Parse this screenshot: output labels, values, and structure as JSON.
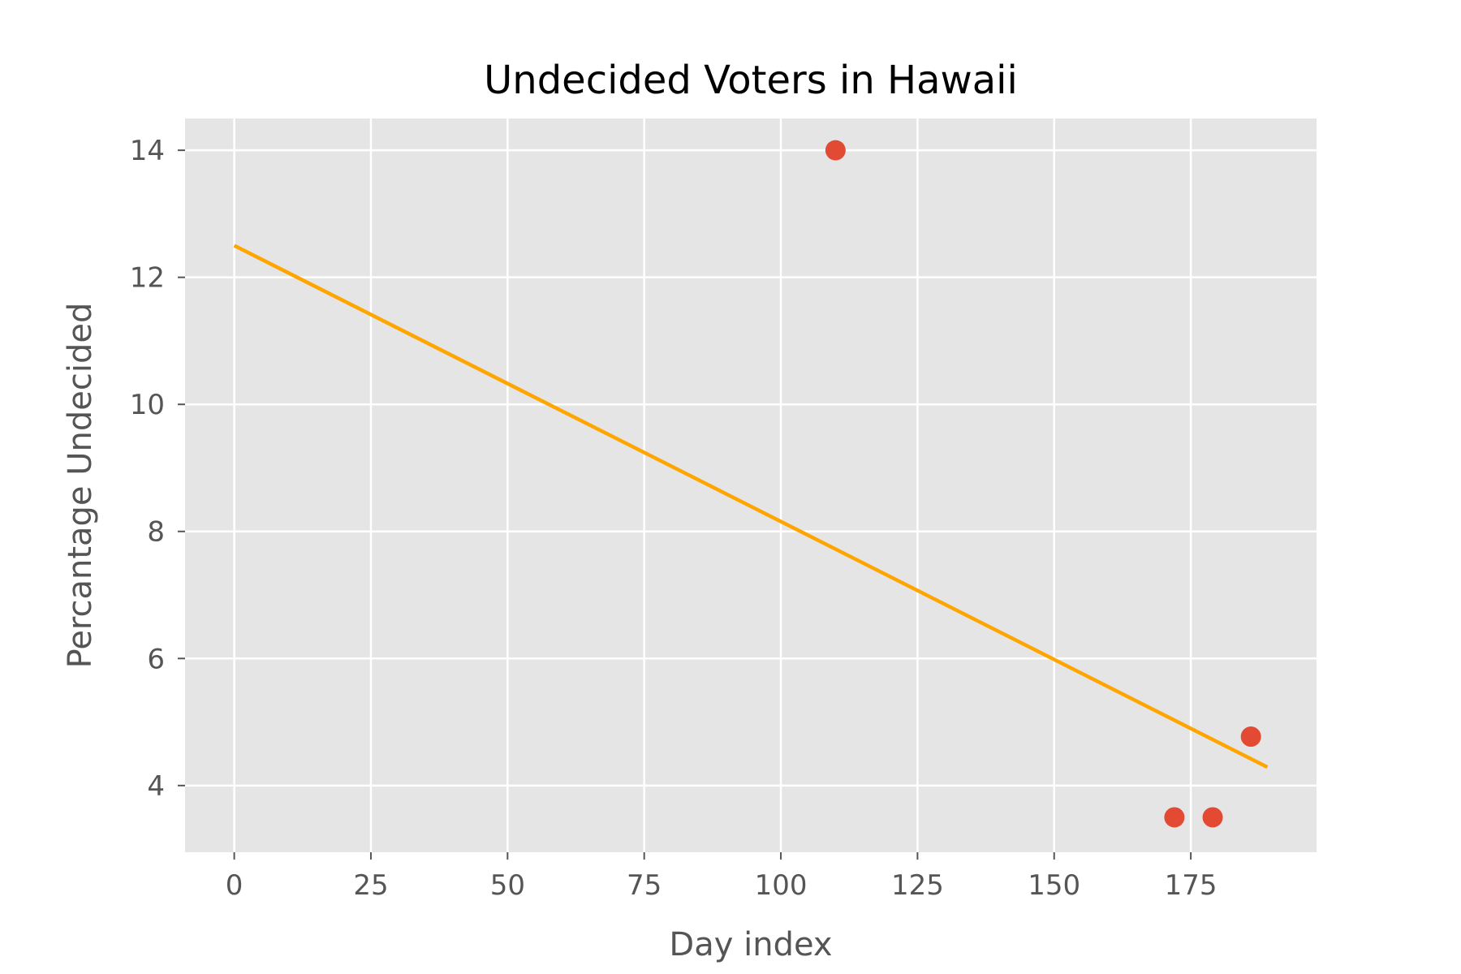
{
  "chart_data": {
    "type": "scatter",
    "title": "Undecided Voters in Hawaii",
    "xlabel": "Day index",
    "ylabel": "Percantage Undecided",
    "xlim": [
      -9,
      198
    ],
    "ylim": [
      2.95,
      14.5
    ],
    "xticks": [
      0,
      25,
      50,
      75,
      100,
      125,
      150,
      175
    ],
    "yticks": [
      4,
      6,
      8,
      10,
      12,
      14
    ],
    "grid": true,
    "background": "#e5e5e5",
    "grid_color": "#ffffff",
    "points": {
      "x": [
        110,
        172,
        179,
        186
      ],
      "y": [
        14.0,
        3.5,
        3.5,
        4.77
      ],
      "color": "#e24a33"
    },
    "trend_line": {
      "x": [
        0,
        189
      ],
      "y": [
        12.5,
        4.29
      ],
      "color": "#ffa500"
    }
  }
}
